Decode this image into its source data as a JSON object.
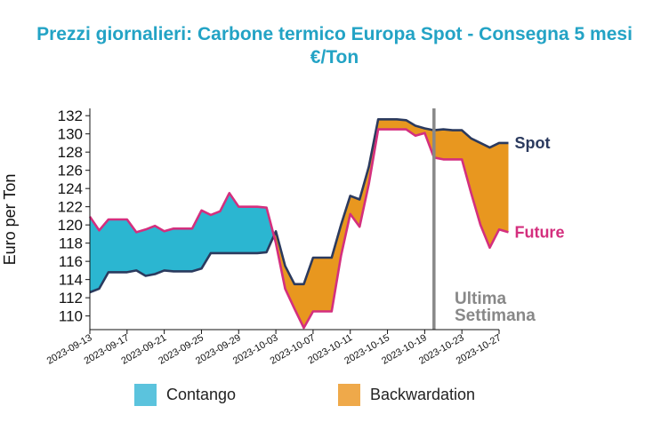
{
  "chart_data": {
    "type": "area",
    "title_line1": "Prezzi giornalieri: Carbone termico Europa Spot - Consegna 5 mesi",
    "title_line2": "€/Ton",
    "ylabel": "Euro per Ton",
    "ylim": [
      108.5,
      132.8
    ],
    "y_ticks": [
      110,
      112,
      114,
      116,
      118,
      120,
      122,
      124,
      126,
      128,
      130,
      132
    ],
    "x_ticks": [
      "2023-09-13",
      "2023-09-17",
      "2023-09-21",
      "2023-09-25",
      "2023-09-29",
      "2023-10-03",
      "2023-10-07",
      "2023-10-11",
      "2023-10-15",
      "2023-10-19",
      "2023-10-23",
      "2023-10-27"
    ],
    "x_start": "2023-09-13",
    "x_end": "2023-10-27",
    "series": [
      {
        "name": "Spot",
        "color": "#2b3a5e",
        "points": [
          [
            "2023-09-13",
            112.6
          ],
          [
            "2023-09-14",
            113.0
          ],
          [
            "2023-09-15",
            114.8
          ],
          [
            "2023-09-16",
            114.8
          ],
          [
            "2023-09-17",
            114.8
          ],
          [
            "2023-09-18",
            115.0
          ],
          [
            "2023-09-19",
            114.4
          ],
          [
            "2023-09-20",
            114.6
          ],
          [
            "2023-09-21",
            115.0
          ],
          [
            "2023-09-22",
            114.9
          ],
          [
            "2023-09-23",
            114.9
          ],
          [
            "2023-09-24",
            114.9
          ],
          [
            "2023-09-25",
            115.2
          ],
          [
            "2023-09-26",
            116.9
          ],
          [
            "2023-09-27",
            116.9
          ],
          [
            "2023-09-28",
            116.9
          ],
          [
            "2023-09-29",
            116.9
          ],
          [
            "2023-09-30",
            116.9
          ],
          [
            "2023-10-01",
            116.9
          ],
          [
            "2023-10-02",
            117.0
          ],
          [
            "2023-10-03",
            119.3
          ],
          [
            "2023-10-04",
            115.5
          ],
          [
            "2023-10-05",
            113.5
          ],
          [
            "2023-10-06",
            113.5
          ],
          [
            "2023-10-07",
            116.4
          ],
          [
            "2023-10-08",
            116.4
          ],
          [
            "2023-10-09",
            116.4
          ],
          [
            "2023-10-10",
            120.0
          ],
          [
            "2023-10-11",
            123.2
          ],
          [
            "2023-10-12",
            122.8
          ],
          [
            "2023-10-13",
            126.4
          ],
          [
            "2023-10-14",
            131.6
          ],
          [
            "2023-10-15",
            131.6
          ],
          [
            "2023-10-16",
            131.6
          ],
          [
            "2023-10-17",
            131.5
          ],
          [
            "2023-10-18",
            130.9
          ],
          [
            "2023-10-19",
            130.6
          ],
          [
            "2023-10-20",
            130.4
          ],
          [
            "2023-10-21",
            130.5
          ],
          [
            "2023-10-22",
            130.4
          ],
          [
            "2023-10-23",
            130.4
          ],
          [
            "2023-10-24",
            129.5
          ],
          [
            "2023-10-25",
            129.0
          ],
          [
            "2023-10-26",
            128.5
          ],
          [
            "2023-10-27",
            129.0
          ],
          [
            "2023-10-28",
            129.0
          ]
        ]
      },
      {
        "name": "Future",
        "color": "#d42f7e",
        "points": [
          [
            "2023-09-13",
            120.9
          ],
          [
            "2023-09-14",
            119.4
          ],
          [
            "2023-09-15",
            120.6
          ],
          [
            "2023-09-16",
            120.6
          ],
          [
            "2023-09-17",
            120.6
          ],
          [
            "2023-09-18",
            119.2
          ],
          [
            "2023-09-19",
            119.5
          ],
          [
            "2023-09-20",
            119.9
          ],
          [
            "2023-09-21",
            119.3
          ],
          [
            "2023-09-22",
            119.6
          ],
          [
            "2023-09-23",
            119.6
          ],
          [
            "2023-09-24",
            119.6
          ],
          [
            "2023-09-25",
            121.6
          ],
          [
            "2023-09-26",
            121.1
          ],
          [
            "2023-09-27",
            121.5
          ],
          [
            "2023-09-28",
            123.5
          ],
          [
            "2023-09-29",
            122.0
          ],
          [
            "2023-09-30",
            122.0
          ],
          [
            "2023-10-01",
            122.0
          ],
          [
            "2023-10-02",
            121.9
          ],
          [
            "2023-10-03",
            118.0
          ],
          [
            "2023-10-04",
            113.0
          ],
          [
            "2023-10-05",
            110.8
          ],
          [
            "2023-10-06",
            108.7
          ],
          [
            "2023-10-07",
            110.5
          ],
          [
            "2023-10-08",
            110.5
          ],
          [
            "2023-10-09",
            110.5
          ],
          [
            "2023-10-10",
            116.6
          ],
          [
            "2023-10-11",
            121.2
          ],
          [
            "2023-10-12",
            119.8
          ],
          [
            "2023-10-13",
            124.5
          ],
          [
            "2023-10-14",
            130.5
          ],
          [
            "2023-10-15",
            130.5
          ],
          [
            "2023-10-16",
            130.5
          ],
          [
            "2023-10-17",
            130.5
          ],
          [
            "2023-10-18",
            129.8
          ],
          [
            "2023-10-19",
            130.1
          ],
          [
            "2023-10-20",
            127.4
          ],
          [
            "2023-10-21",
            127.2
          ],
          [
            "2023-10-22",
            127.2
          ],
          [
            "2023-10-23",
            127.2
          ],
          [
            "2023-10-24",
            123.5
          ],
          [
            "2023-10-25",
            120.0
          ],
          [
            "2023-10-26",
            117.5
          ],
          [
            "2023-10-27",
            119.5
          ],
          [
            "2023-10-28",
            119.2
          ]
        ]
      }
    ],
    "fill_colors": {
      "contango": "#2bb6d1",
      "backwardation": "#e8971f"
    },
    "legend": [
      {
        "label": "Contango",
        "color": "#5bc3dd"
      },
      {
        "label": "Backwardation",
        "color": "#efa94a"
      }
    ],
    "vline": {
      "date": "2023-10-20",
      "color": "#888888",
      "label_line1": "Ultima",
      "label_line2": "Settimana"
    }
  }
}
